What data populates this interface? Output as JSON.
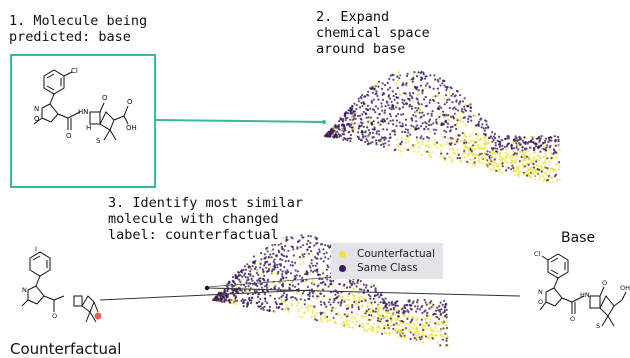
{
  "step1": {
    "lines": [
      "1. Molecule being",
      "predicted: base"
    ]
  },
  "step2": {
    "lines": [
      "2. Expand",
      "chemical space",
      "around base"
    ]
  },
  "step3": {
    "lines": [
      "3. Identify most similar",
      "molecule with changed",
      "label: counterfactual"
    ]
  },
  "base_label": "Base",
  "counterfactual_label": "Counterfactual",
  "legend": [
    {
      "label": "Counterfactual",
      "color": "#f2e23a"
    },
    {
      "label": "Same Class",
      "color": "#3b1a5c"
    }
  ],
  "molecule_atoms": {
    "cl": "Cl",
    "n": "N",
    "o": "O",
    "hn": "HN",
    "h": "H",
    "s": "S",
    "oh": "OH",
    "i": "I"
  },
  "colors": {
    "box": "#3bb89a",
    "purple": "#3b1a5c",
    "yellow": "#f2e23a",
    "highlight": "#e8433a"
  }
}
